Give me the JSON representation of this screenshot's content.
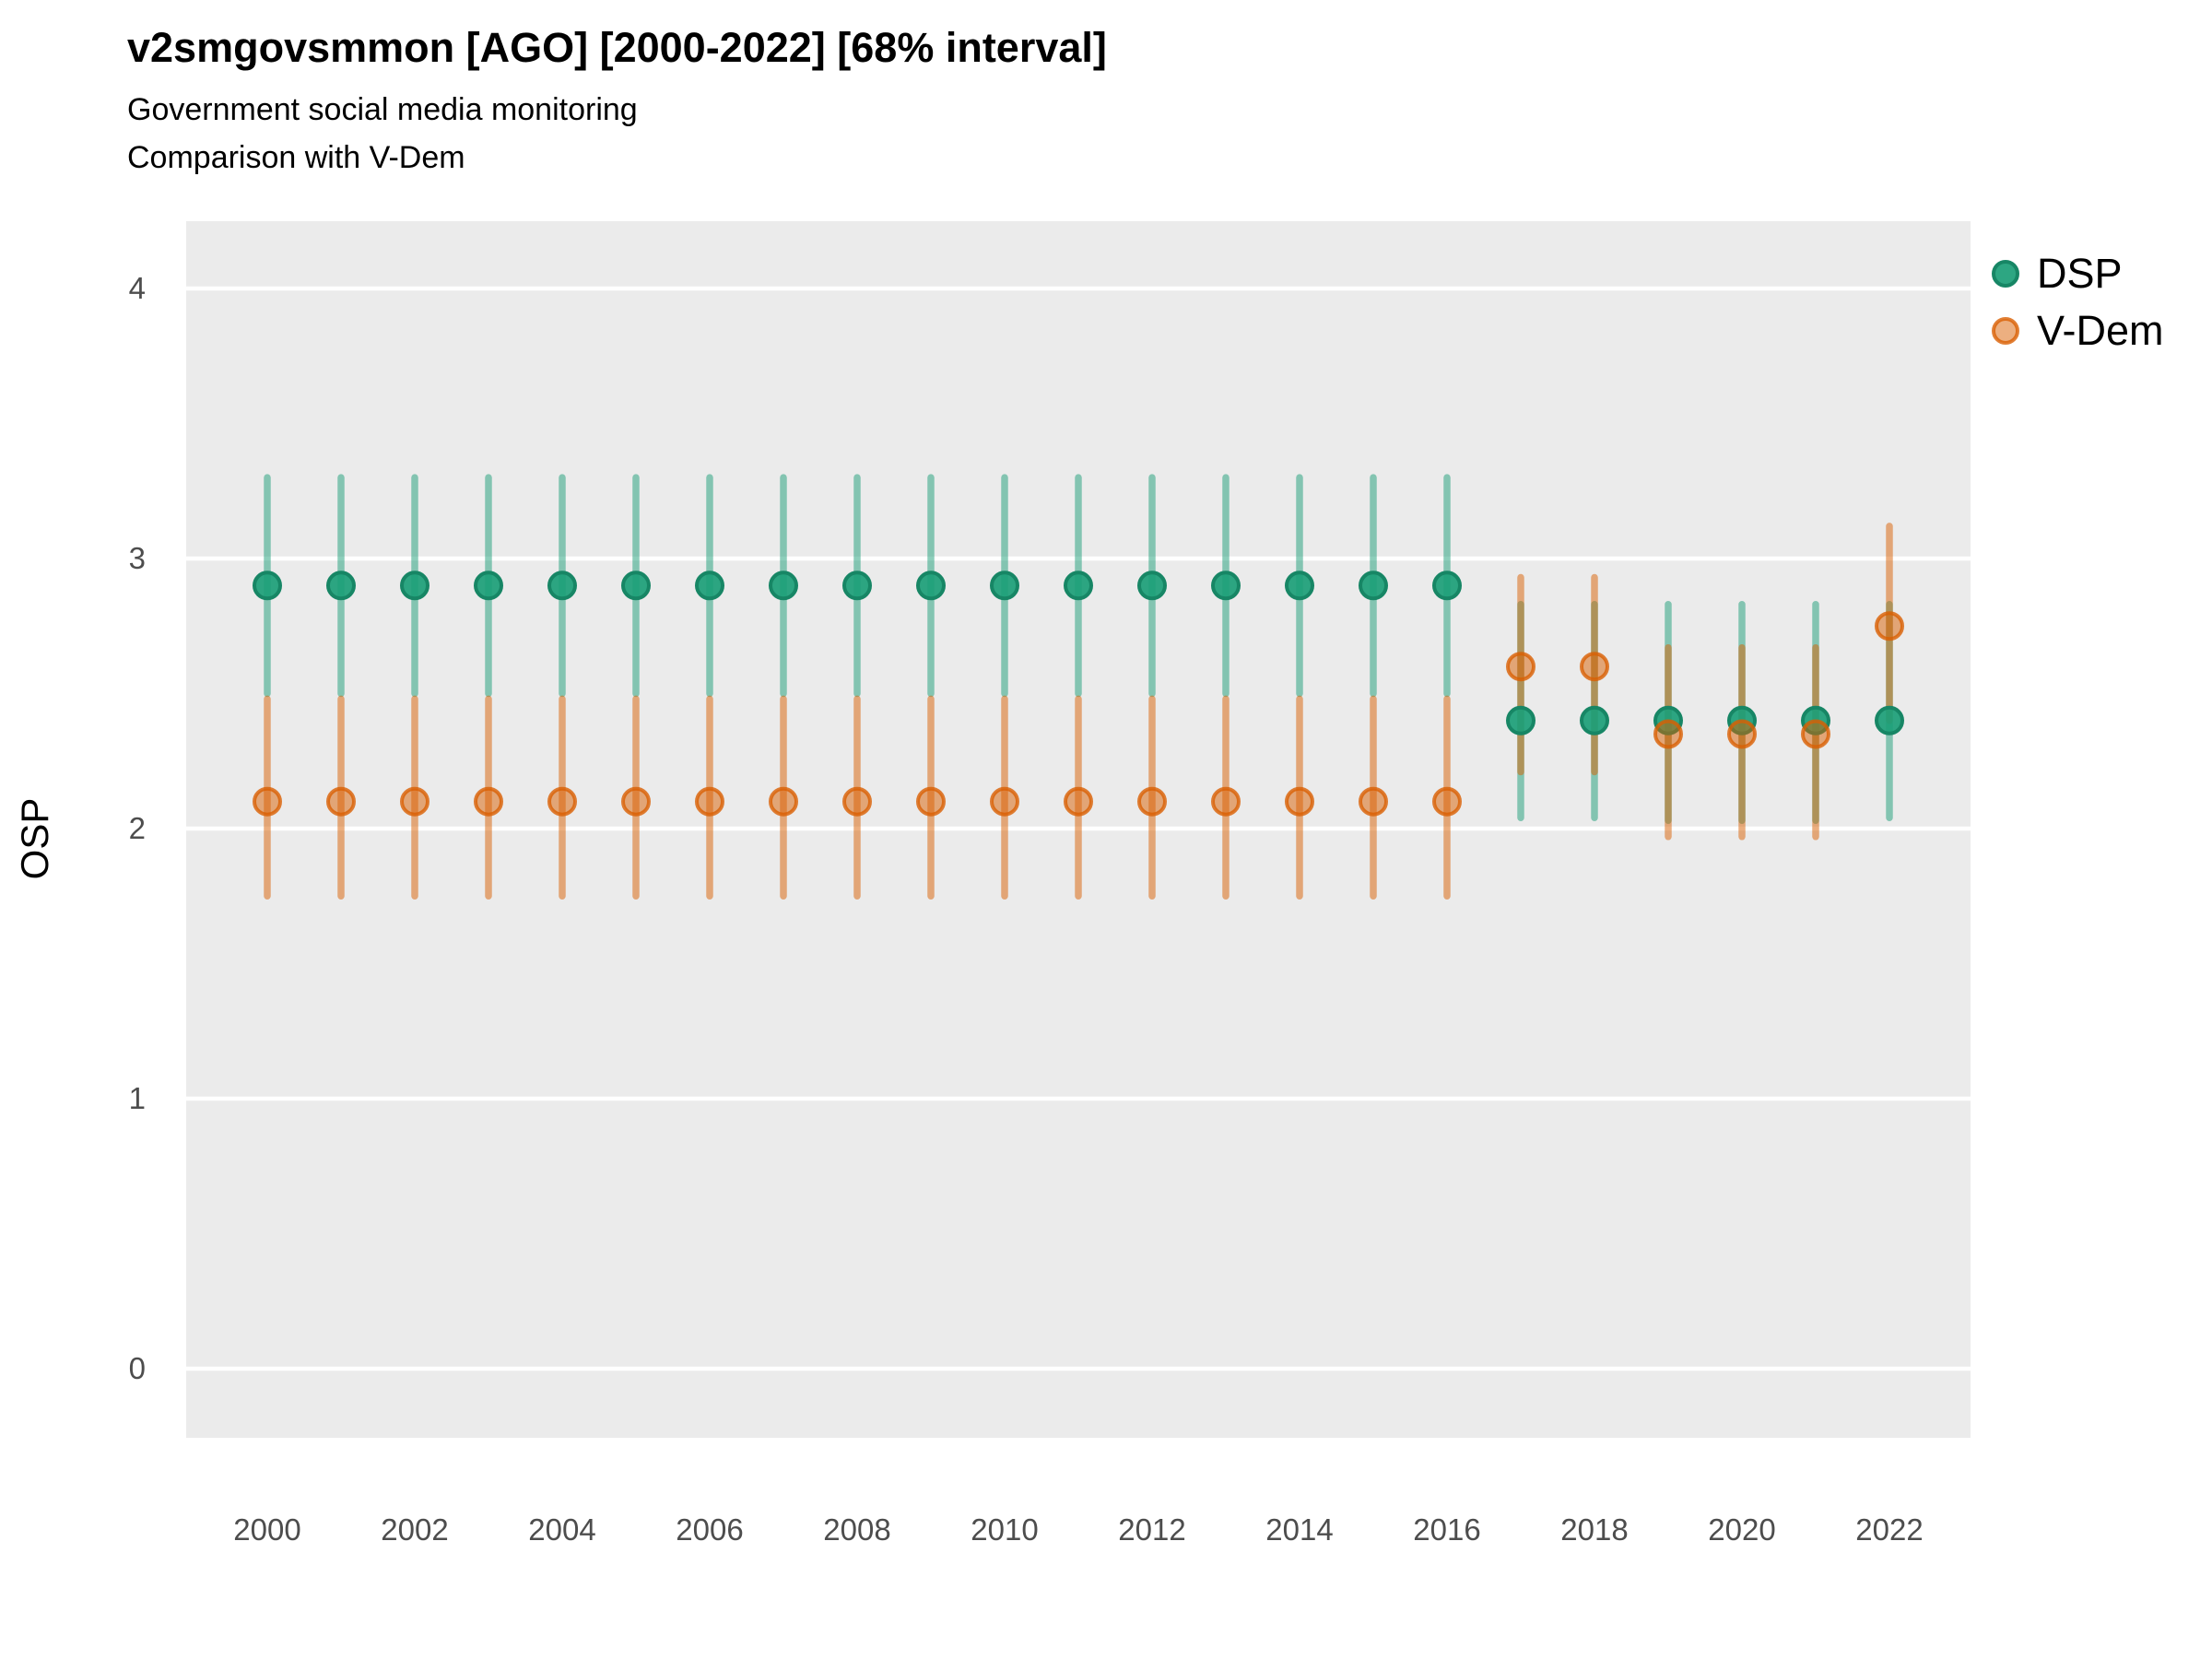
{
  "title": "v2smgovsmmon [AGO] [2000-2022] [68% interval]",
  "subtitle1": "Government social media monitoring",
  "subtitle2": "Comparison with V-Dem",
  "y_axis_label": "OSP",
  "legend": {
    "position": "right",
    "items": [
      {
        "label": "DSP",
        "color": "#1B9E77"
      },
      {
        "label": "V-Dem",
        "color": "#D95F02"
      }
    ]
  },
  "colors": {
    "panel_background": "#EBEBEB",
    "gridline": "#FFFFFF",
    "dsp": "#1B9E77",
    "vdem": "#D95F02",
    "tick_text": "#4D4D4D",
    "title_text": "#000000"
  },
  "chart_data": {
    "type": "pointrange",
    "title": "v2smgovsmmon [AGO] [2000-2022] [68% interval]",
    "subtitle": [
      "Government social media monitoring",
      "Comparison with V-Dem"
    ],
    "xlabel": "",
    "ylabel": "OSP",
    "interval": "68%",
    "grid": "horizontal major gridlines, white on gray panel",
    "legend_position": "right",
    "x": [
      2000,
      2001,
      2002,
      2003,
      2004,
      2005,
      2006,
      2007,
      2008,
      2009,
      2010,
      2011,
      2012,
      2013,
      2014,
      2015,
      2016,
      2017,
      2018,
      2019,
      2020,
      2021,
      2022
    ],
    "x_ticks": [
      2000,
      2002,
      2004,
      2006,
      2008,
      2010,
      2012,
      2014,
      2016,
      2018,
      2020,
      2022
    ],
    "y_ticks": [
      0,
      1,
      2,
      3,
      4
    ],
    "ylim": [
      -0.25,
      4.25
    ],
    "xlim": [
      1998.9,
      2023.1
    ],
    "series": [
      {
        "name": "DSP",
        "color": "#1B9E77",
        "mean": [
          2.9,
          2.9,
          2.9,
          2.9,
          2.9,
          2.9,
          2.9,
          2.9,
          2.9,
          2.9,
          2.9,
          2.9,
          2.9,
          2.9,
          2.9,
          2.9,
          2.9,
          2.4,
          2.4,
          2.4,
          2.4,
          2.4,
          2.4
        ],
        "lo": [
          2.5,
          2.5,
          2.5,
          2.5,
          2.5,
          2.5,
          2.5,
          2.5,
          2.5,
          2.5,
          2.5,
          2.5,
          2.5,
          2.5,
          2.5,
          2.5,
          2.5,
          2.04,
          2.04,
          2.03,
          2.03,
          2.03,
          2.04
        ],
        "hi": [
          3.3,
          3.3,
          3.3,
          3.3,
          3.3,
          3.3,
          3.3,
          3.3,
          3.3,
          3.3,
          3.3,
          3.3,
          3.3,
          3.3,
          3.3,
          3.3,
          3.3,
          2.83,
          2.83,
          2.83,
          2.83,
          2.83,
          2.83
        ]
      },
      {
        "name": "V-Dem",
        "color": "#D95F02",
        "mean": [
          2.1,
          2.1,
          2.1,
          2.1,
          2.1,
          2.1,
          2.1,
          2.1,
          2.1,
          2.1,
          2.1,
          2.1,
          2.1,
          2.1,
          2.1,
          2.1,
          2.1,
          2.6,
          2.6,
          2.35,
          2.35,
          2.35,
          2.75
        ],
        "lo": [
          1.75,
          1.75,
          1.75,
          1.75,
          1.75,
          1.75,
          1.75,
          1.75,
          1.75,
          1.75,
          1.75,
          1.75,
          1.75,
          1.75,
          1.75,
          1.75,
          1.75,
          2.21,
          2.21,
          1.97,
          1.97,
          1.97,
          2.4
        ],
        "hi": [
          2.48,
          2.48,
          2.48,
          2.48,
          2.48,
          2.48,
          2.48,
          2.48,
          2.48,
          2.48,
          2.48,
          2.48,
          2.48,
          2.48,
          2.48,
          2.48,
          2.48,
          2.93,
          2.93,
          2.67,
          2.67,
          2.67,
          3.12
        ]
      }
    ]
  }
}
